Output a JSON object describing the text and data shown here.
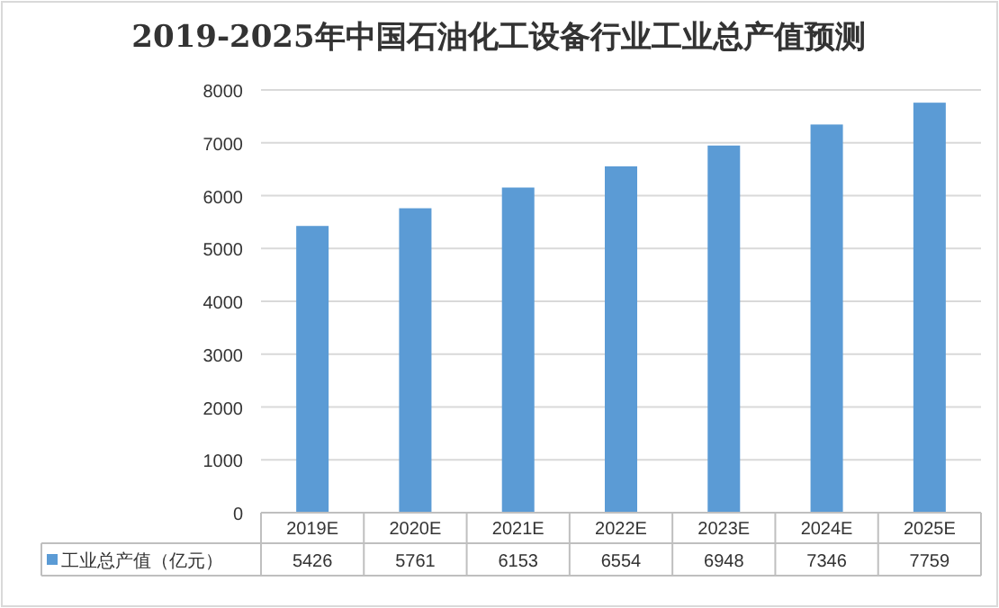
{
  "chart_data": {
    "type": "bar",
    "title": "2019-2025年中国石油化工设备行业工业总产值预测",
    "categories": [
      "2019E",
      "2020E",
      "2021E",
      "2022E",
      "2023E",
      "2024E",
      "2025E"
    ],
    "series": [
      {
        "name": "工业总产值（亿元）",
        "color": "#5b9bd5",
        "values": [
          5426,
          5761,
          6153,
          6554,
          6948,
          7346,
          7759
        ]
      }
    ],
    "ylim": [
      0,
      8000
    ],
    "yticks": [
      0,
      1000,
      2000,
      3000,
      4000,
      5000,
      6000,
      7000,
      8000
    ],
    "grid": "y",
    "data_labels": true,
    "legend": "bottom"
  }
}
